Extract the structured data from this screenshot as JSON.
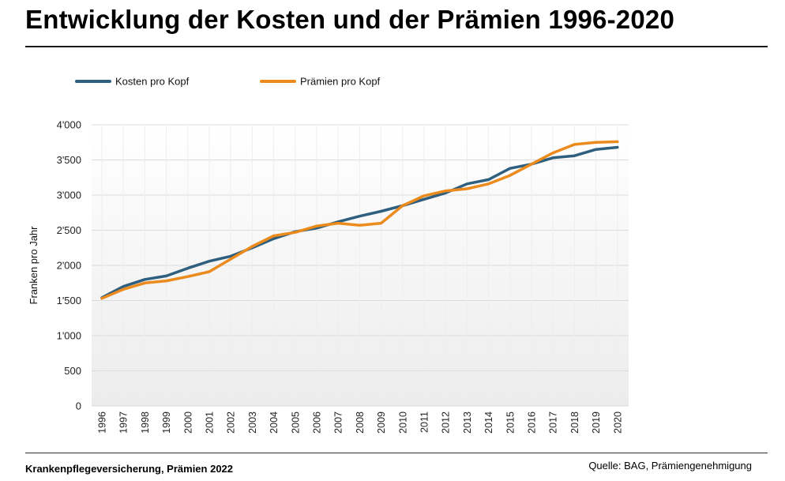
{
  "title": "Entwicklung der Kosten und der Prämien 1996-2020",
  "footer": {
    "left": "Krankenpflegeversicherung, Prämien 2022",
    "right": "Quelle: BAG, Prämiengenehmigung"
  },
  "colors": {
    "kosten": "#2f5f7f",
    "praemien": "#ec8b1d",
    "grid": "#dcdcdc"
  },
  "chart_data": {
    "type": "line",
    "ylabel": "Franken pro Jahr",
    "xlabel": "",
    "ylim": [
      0,
      4000
    ],
    "yticks": [
      0,
      500,
      1000,
      1500,
      2000,
      2500,
      3000,
      3500,
      4000
    ],
    "ytick_labels": [
      "0",
      "500",
      "1'000",
      "1'500",
      "2'000",
      "2'500",
      "3'000",
      "3'500",
      "4'000"
    ],
    "grid": true,
    "legend": "top-left",
    "x": [
      "1996",
      "1997",
      "1998",
      "1999",
      "2000",
      "2001",
      "2002",
      "2003",
      "2004",
      "2005",
      "2006",
      "2007",
      "2008",
      "2009",
      "2010",
      "2011",
      "2012",
      "2013",
      "2014",
      "2015",
      "2016",
      "2017",
      "2018",
      "2019",
      "2020"
    ],
    "series": [
      {
        "name": "Kosten pro Kopf",
        "color": "#2f5f7f",
        "values": [
          1540,
          1700,
          1800,
          1850,
          1960,
          2060,
          2130,
          2250,
          2380,
          2480,
          2530,
          2620,
          2700,
          2770,
          2850,
          2940,
          3030,
          3160,
          3220,
          3380,
          3440,
          3530,
          3560,
          3650,
          3680
        ]
      },
      {
        "name": "Prämien pro Kopf",
        "color": "#ec8b1d",
        "values": [
          1530,
          1660,
          1750,
          1780,
          1840,
          1910,
          2090,
          2270,
          2420,
          2470,
          2560,
          2600,
          2570,
          2600,
          2850,
          2990,
          3060,
          3090,
          3160,
          3280,
          3440,
          3600,
          3720,
          3750,
          3760
        ]
      }
    ]
  }
}
